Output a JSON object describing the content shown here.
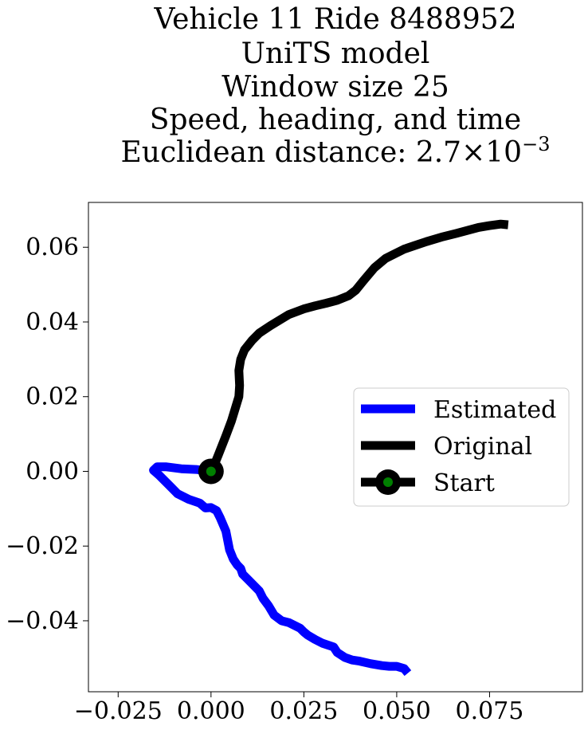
{
  "chart_data": {
    "type": "line",
    "title_lines": [
      "Vehicle 11 Ride 8488952",
      "UniTS model",
      "Window size 25",
      "Speed, heading, and time"
    ],
    "title_metric": {
      "prefix": "Euclidean distance: ",
      "mantissa": "2.7",
      "times": "×",
      "base": "10",
      "exponent": "−3"
    },
    "xlabel": "",
    "ylabel": "",
    "xlim": [
      -0.033,
      0.1
    ],
    "ylim": [
      -0.059,
      0.072
    ],
    "x_ticks": [
      -0.025,
      0.0,
      0.025,
      0.05,
      0.075
    ],
    "x_tick_labels": [
      "−0.025",
      "0.000",
      "0.025",
      "0.050",
      "0.075"
    ],
    "y_ticks": [
      -0.04,
      -0.02,
      0.0,
      0.02,
      0.04,
      0.06
    ],
    "y_tick_labels": [
      "−0.04",
      "−0.02",
      "0.00",
      "0.02",
      "0.04",
      "0.06"
    ],
    "grid": false,
    "legend_position": "center-right",
    "legend": [
      "Estimated",
      "Original",
      "Start"
    ],
    "colors": {
      "estimated": "#0000ff",
      "original": "#000000",
      "start_marker": "#000000",
      "start_fill": "#008000"
    },
    "series": [
      {
        "name": "Estimated",
        "x": [
          0.0,
          -0.004,
          -0.008,
          -0.012,
          -0.0145,
          -0.0155,
          -0.014,
          -0.0125,
          -0.011,
          -0.009,
          -0.006,
          -0.003,
          -0.0015,
          0.0,
          0.0015,
          0.0025,
          0.004,
          0.0045,
          0.005,
          0.006,
          0.007,
          0.008,
          0.0085,
          0.01,
          0.013,
          0.014,
          0.0155,
          0.017,
          0.019,
          0.021,
          0.024,
          0.025,
          0.026,
          0.028,
          0.03,
          0.033,
          0.034,
          0.036,
          0.038,
          0.04,
          0.043,
          0.046,
          0.048,
          0.05,
          0.052,
          0.053
        ],
        "y": [
          0.0,
          0.0005,
          0.0007,
          0.0012,
          0.0012,
          0.0003,
          -0.001,
          -0.0025,
          -0.004,
          -0.006,
          -0.0075,
          -0.0085,
          -0.0098,
          -0.0097,
          -0.0105,
          -0.0125,
          -0.016,
          -0.0185,
          -0.021,
          -0.0235,
          -0.025,
          -0.026,
          -0.0275,
          -0.029,
          -0.032,
          -0.034,
          -0.036,
          -0.0385,
          -0.04,
          -0.0405,
          -0.042,
          -0.043,
          -0.0438,
          -0.045,
          -0.046,
          -0.047,
          -0.0485,
          -0.0498,
          -0.0505,
          -0.0508,
          -0.0515,
          -0.052,
          -0.0522,
          -0.0522,
          -0.0528,
          -0.054
        ]
      },
      {
        "name": "Original",
        "x": [
          0.0,
          0.001,
          0.002,
          0.003,
          0.004,
          0.0055,
          0.0075,
          0.0077,
          0.0075,
          0.008,
          0.009,
          0.011,
          0.013,
          0.016,
          0.019,
          0.021,
          0.025,
          0.028,
          0.031,
          0.034,
          0.037,
          0.039,
          0.041,
          0.044,
          0.047,
          0.049,
          0.052,
          0.055,
          0.058,
          0.062,
          0.066,
          0.069,
          0.072,
          0.075,
          0.078,
          0.08
        ],
        "y": [
          0.0,
          0.002,
          0.0045,
          0.007,
          0.0095,
          0.0135,
          0.02,
          0.023,
          0.027,
          0.03,
          0.0325,
          0.035,
          0.037,
          0.039,
          0.0408,
          0.042,
          0.0435,
          0.0443,
          0.045,
          0.0458,
          0.047,
          0.0485,
          0.051,
          0.0545,
          0.057,
          0.058,
          0.0595,
          0.0605,
          0.0615,
          0.0627,
          0.0637,
          0.0645,
          0.0653,
          0.0658,
          0.0662,
          0.066
        ]
      },
      {
        "name": "Start",
        "x": [
          0.0
        ],
        "y": [
          0.0
        ]
      }
    ]
  }
}
